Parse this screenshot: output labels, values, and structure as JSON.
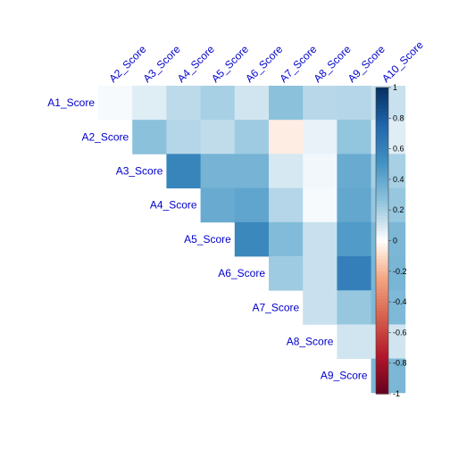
{
  "chart_data": {
    "type": "heatmap",
    "layout": "upper-triangle correlation matrix (corrplot)",
    "row_labels": [
      "A1_Score",
      "A2_Score",
      "A3_Score",
      "A4_Score",
      "A5_Score",
      "A6_Score",
      "A7_Score",
      "A8_Score",
      "A9_Score"
    ],
    "col_labels": [
      "A2_Score",
      "A3_Score",
      "A4_Score",
      "A5_Score",
      "A6_Score",
      "A7_Score",
      "A8_Score",
      "A9_Score",
      "A10_Score"
    ],
    "values": [
      [
        0.02,
        0.07,
        0.15,
        0.2,
        0.1,
        0.27,
        0.16,
        0.17,
        0.12
      ],
      [
        null,
        0.27,
        0.17,
        0.14,
        0.22,
        -0.05,
        0.05,
        0.25,
        0.07
      ],
      [
        null,
        null,
        0.58,
        0.34,
        0.34,
        0.09,
        0.03,
        0.38,
        0.2
      ],
      [
        null,
        null,
        null,
        0.38,
        0.41,
        0.17,
        0.02,
        0.4,
        0.24
      ],
      [
        null,
        null,
        null,
        null,
        0.56,
        0.3,
        0.12,
        0.46,
        0.32
      ],
      [
        null,
        null,
        null,
        null,
        null,
        0.22,
        0.12,
        0.61,
        0.33
      ],
      [
        null,
        null,
        null,
        null,
        null,
        null,
        0.12,
        0.24,
        0.31
      ],
      [
        null,
        null,
        null,
        null,
        null,
        null,
        null,
        0.1,
        0.1
      ],
      [
        null,
        null,
        null,
        null,
        null,
        null,
        null,
        null,
        0.32
      ]
    ],
    "colorbar": {
      "range": [
        -1,
        1
      ],
      "ticks": [
        "1",
        "0.8",
        "0.6",
        "0.4",
        "0.2",
        "0",
        "-0.2",
        "-0.4",
        "-0.6",
        "-0.8",
        "-1"
      ]
    },
    "colors": {
      "negative": "#67001F",
      "neutral": "#FFFFFF",
      "positive": "#053061",
      "label": "#0000CC"
    }
  }
}
